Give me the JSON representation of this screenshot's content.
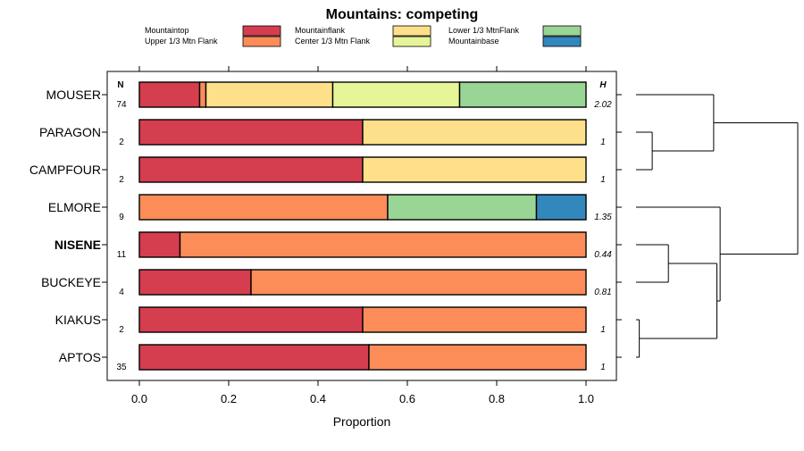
{
  "chart_data": {
    "type": "bar",
    "orientation": "horizontal",
    "stacked": true,
    "title": "Mountains: competing",
    "xlabel": "Proportion",
    "ylabel": "",
    "xlim": [
      0,
      1
    ],
    "x_ticks": [
      0,
      0.2,
      0.4,
      0.6,
      0.8,
      1
    ],
    "x_tick_labels": [
      "0.0",
      "0.2",
      "0.4",
      "0.6",
      "0.8",
      "1.0"
    ],
    "n_header": "N",
    "h_header": "H",
    "legend": [
      {
        "name": "Mountaintop",
        "color": "#d53e4f"
      },
      {
        "name": "Upper 1/3 Mtn Flank",
        "color": "#fc8d59"
      },
      {
        "name": "Mountainflank",
        "color": "#fee08b"
      },
      {
        "name": "Center 1/3 Mtn Flank",
        "color": "#e6f598"
      },
      {
        "name": "Lower 1/3 MtnFlank",
        "color": "#99d594"
      },
      {
        "name": "Mountainbase",
        "color": "#3288bd"
      }
    ],
    "categories": [
      "MOUSER",
      "PARAGON",
      "CAMPFOUR",
      "ELMORE",
      "NISENE",
      "BUCKEYE",
      "KIAKUS",
      "APTOS"
    ],
    "highlighted_category": "NISENE",
    "n": [
      "74",
      "2",
      "2",
      "9",
      "11",
      "4",
      "2",
      "35"
    ],
    "h": [
      "2.02",
      "1",
      "1",
      "1.35",
      "0.44",
      "0.81",
      "1",
      "1"
    ],
    "series": [
      {
        "name": "Mountaintop",
        "values": [
          0.135,
          0.5,
          0.5,
          0,
          0.091,
          0.25,
          0.5,
          0.514
        ]
      },
      {
        "name": "Upper 1/3 Mtn Flank",
        "values": [
          0.014,
          0,
          0,
          0.556,
          0.909,
          0.75,
          0.5,
          0.486
        ]
      },
      {
        "name": "Mountainflank",
        "values": [
          0.284,
          0.5,
          0.5,
          0,
          0,
          0,
          0,
          0
        ]
      },
      {
        "name": "Center 1/3 Mtn Flank",
        "values": [
          0.284,
          0,
          0,
          0,
          0,
          0,
          0,
          0
        ]
      },
      {
        "name": "Lower 1/3 MtnFlank",
        "values": [
          0.283,
          0,
          0,
          0.333,
          0,
          0,
          0,
          0
        ]
      },
      {
        "name": "Mountainbase",
        "values": [
          0,
          0,
          0,
          0.111,
          0,
          0,
          0,
          0
        ]
      }
    ],
    "dendrogram": {
      "leaves": [
        "MOUSER",
        "PARAGON",
        "CAMPFOUR",
        "ELMORE",
        "NISENE",
        "BUCKEYE",
        "KIAKUS",
        "APTOS"
      ],
      "merges": [
        {
          "children": [
            "PARAGON",
            "CAMPFOUR"
          ],
          "height": 0.1
        },
        {
          "children": [
            "KIAKUS",
            "APTOS"
          ],
          "height": 0.02
        },
        {
          "children": [
            "NISENE",
            "BUCKEYE"
          ],
          "height": 0.2
        },
        {
          "children": [
            "MOUSER",
            "PARAGON+CAMPFOUR"
          ],
          "height": 0.48
        },
        {
          "children": [
            "NISENE+BUCKEYE",
            "KIAKUS+APTOS"
          ],
          "height": 0.5
        },
        {
          "children": [
            "ELMORE",
            "NISENE+BUCKEYE+KIAKUS+APTOS"
          ],
          "height": 0.52
        },
        {
          "children": [
            "MOUSER+PARAGON+CAMPFOUR",
            "ELMORE+NISENE+BUCKEYE+KIAKUS+APTOS"
          ],
          "height": 1.0
        }
      ]
    }
  }
}
